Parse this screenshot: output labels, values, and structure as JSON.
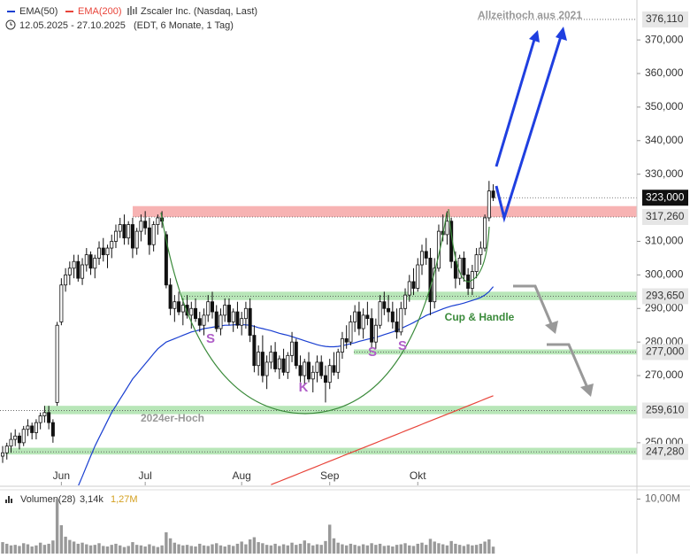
{
  "chart_data": {
    "type": "candlestick",
    "title": "Zscaler Inc. (Nasdaq, Last)",
    "date_range": "12.05.2025 - 27.10.2025",
    "period_note": "(EDT, 6 Monate, 1 Tag)",
    "x_labels": [
      {
        "index": 14,
        "label": "Jun"
      },
      {
        "index": 34,
        "label": "Jul"
      },
      {
        "index": 57,
        "label": "Aug"
      },
      {
        "index": 78,
        "label": "Sep"
      },
      {
        "index": 99,
        "label": "Okt"
      }
    ],
    "candles": [
      [
        246,
        249,
        244,
        247
      ],
      [
        247,
        250,
        245,
        249
      ],
      [
        249,
        253,
        247,
        251
      ],
      [
        251,
        254,
        249,
        252
      ],
      [
        252,
        253,
        248,
        250
      ],
      [
        250,
        255,
        249,
        254
      ],
      [
        254,
        257,
        252,
        255
      ],
      [
        255,
        256,
        251,
        253
      ],
      [
        253,
        257,
        251,
        256
      ],
      [
        256,
        259,
        254,
        258
      ],
      [
        258,
        261,
        256,
        259
      ],
      [
        259,
        261,
        254,
        256
      ],
      [
        256,
        257,
        250,
        252
      ],
      [
        262,
        286,
        261,
        285
      ],
      [
        286,
        299,
        285,
        297
      ],
      [
        297,
        302,
        295,
        300
      ],
      [
        300,
        304,
        297,
        302
      ],
      [
        302,
        306,
        299,
        304
      ],
      [
        304,
        306,
        298,
        299
      ],
      [
        299,
        305,
        297,
        303
      ],
      [
        303,
        308,
        301,
        306
      ],
      [
        306,
        307,
        300,
        302
      ],
      [
        302,
        306,
        299,
        305
      ],
      [
        305,
        310,
        303,
        308
      ],
      [
        308,
        311,
        304,
        306
      ],
      [
        306,
        309,
        302,
        308
      ],
      [
        308,
        312,
        305,
        310
      ],
      [
        310,
        315,
        308,
        313
      ],
      [
        313,
        317,
        311,
        315
      ],
      [
        315,
        318,
        309,
        311
      ],
      [
        311,
        316,
        309,
        315
      ],
      [
        315,
        317,
        305,
        308
      ],
      [
        308,
        314,
        306,
        313
      ],
      [
        313,
        318,
        310,
        316
      ],
      [
        316,
        319,
        312,
        314
      ],
      [
        314,
        317,
        306,
        309
      ],
      [
        309,
        316,
        307,
        315
      ],
      [
        315,
        318,
        312,
        317
      ],
      [
        317,
        319,
        314,
        316
      ],
      [
        312,
        313,
        296,
        297
      ],
      [
        297,
        299,
        288,
        290
      ],
      [
        290,
        294,
        286,
        292
      ],
      [
        292,
        295,
        288,
        289
      ],
      [
        289,
        293,
        285,
        291
      ],
      [
        291,
        294,
        287,
        288
      ],
      [
        288,
        292,
        284,
        290
      ],
      [
        290,
        293,
        286,
        287
      ],
      [
        287,
        289,
        283,
        285
      ],
      [
        285,
        290,
        282,
        288
      ],
      [
        288,
        294,
        286,
        292
      ],
      [
        292,
        295,
        287,
        289
      ],
      [
        289,
        291,
        283,
        284
      ],
      [
        284,
        290,
        282,
        288
      ],
      [
        288,
        293,
        286,
        291
      ],
      [
        291,
        293,
        285,
        286
      ],
      [
        286,
        290,
        283,
        289
      ],
      [
        289,
        292,
        284,
        285
      ],
      [
        285,
        289,
        282,
        287
      ],
      [
        287,
        292,
        284,
        290
      ],
      [
        290,
        293,
        280,
        282
      ],
      [
        282,
        285,
        271,
        273
      ],
      [
        273,
        279,
        270,
        277
      ],
      [
        277,
        282,
        268,
        270
      ],
      [
        270,
        276,
        266,
        274
      ],
      [
        274,
        279,
        272,
        277
      ],
      [
        277,
        280,
        271,
        272
      ],
      [
        272,
        276,
        269,
        275
      ],
      [
        275,
        278,
        270,
        271
      ],
      [
        271,
        277,
        269,
        276
      ],
      [
        276,
        283,
        274,
        280
      ],
      [
        280,
        281,
        272,
        273
      ],
      [
        273,
        276,
        268,
        270
      ],
      [
        270,
        275,
        267,
        274
      ],
      [
        274,
        277,
        268,
        269
      ],
      [
        269,
        273,
        265,
        271
      ],
      [
        271,
        276,
        268,
        274
      ],
      [
        274,
        276,
        269,
        270
      ],
      [
        270,
        273,
        262,
        268
      ],
      [
        268,
        275,
        266,
        273
      ],
      [
        273,
        277,
        270,
        271
      ],
      [
        271,
        278,
        269,
        277
      ],
      [
        277,
        283,
        275,
        281
      ],
      [
        281,
        285,
        278,
        280
      ],
      [
        280,
        288,
        279,
        286
      ],
      [
        286,
        291,
        283,
        289
      ],
      [
        289,
        292,
        282,
        284
      ],
      [
        284,
        290,
        281,
        288
      ],
      [
        288,
        292,
        285,
        287
      ],
      [
        287,
        290,
        278,
        280
      ],
      [
        280,
        287,
        278,
        285
      ],
      [
        285,
        294,
        284,
        292
      ],
      [
        292,
        295,
        288,
        290
      ],
      [
        290,
        294,
        286,
        289
      ],
      [
        289,
        292,
        284,
        286
      ],
      [
        286,
        290,
        281,
        283
      ],
      [
        283,
        292,
        282,
        290
      ],
      [
        290,
        296,
        288,
        294
      ],
      [
        294,
        300,
        292,
        298
      ],
      [
        298,
        302,
        294,
        296
      ],
      [
        296,
        305,
        295,
        303
      ],
      [
        303,
        309,
        300,
        307
      ],
      [
        307,
        311,
        303,
        305
      ],
      [
        305,
        308,
        288,
        292
      ],
      [
        292,
        305,
        290,
        302
      ],
      [
        302,
        315,
        301,
        313
      ],
      [
        313,
        318,
        310,
        312
      ],
      [
        312,
        319,
        309,
        316
      ],
      [
        316,
        317,
        302,
        304
      ],
      [
        304,
        307,
        296,
        299
      ],
      [
        299,
        306,
        297,
        305
      ],
      [
        305,
        307,
        298,
        300
      ],
      [
        300,
        302,
        294,
        296
      ],
      [
        296,
        303,
        294,
        301
      ],
      [
        301,
        308,
        299,
        306
      ],
      [
        306,
        310,
        303,
        308
      ],
      [
        308,
        318,
        307,
        317
      ],
      [
        317,
        328,
        316,
        325
      ],
      [
        325,
        327,
        322,
        323
      ]
    ],
    "series": [
      {
        "name": "EMA(50)",
        "color": "#1a3fd1",
        "values": [
          null,
          null,
          null,
          null,
          null,
          null,
          null,
          null,
          null,
          null,
          null,
          null,
          null,
          null,
          null,
          null,
          null,
          null,
          237,
          240,
          243,
          246,
          249,
          251.5,
          254,
          256.5,
          259,
          261,
          263,
          265,
          267,
          269,
          270.5,
          272,
          273.5,
          275,
          276.5,
          278,
          279,
          280,
          280.5,
          281,
          281.5,
          282,
          282.5,
          283,
          283.3,
          283.6,
          284,
          284.2,
          284.4,
          284.6,
          284.8,
          285,
          285,
          285.1,
          285.2,
          285.2,
          285.1,
          285,
          284.7,
          284.3,
          284,
          283.7,
          283.4,
          283,
          282.6,
          282.3,
          282,
          281.6,
          281.2,
          280.8,
          280.4,
          280,
          279.6,
          279.2,
          278.9,
          278.7,
          278.6,
          278.6,
          278.7,
          278.9,
          279.2,
          279.5,
          279.8,
          280.2,
          280.5,
          280.8,
          281.1,
          281.4,
          281.8,
          282.2,
          282.6,
          283,
          283.5,
          284,
          284.6,
          285.2,
          285.8,
          286.5,
          287.2,
          287.9,
          288.4,
          288.9,
          289.4,
          289.9,
          290.3,
          290.7,
          291,
          291.3,
          291.6,
          292,
          292.4,
          292.8,
          293.3,
          294,
          295,
          296.5
        ]
      },
      {
        "name": "EMA(200)",
        "color": "#e8443a",
        "values": [
          null,
          null,
          null,
          null,
          null,
          null,
          null,
          null,
          null,
          null,
          null,
          null,
          null,
          null,
          null,
          null,
          null,
          null,
          null,
          null,
          null,
          null,
          null,
          null,
          null,
          null,
          null,
          null,
          null,
          null,
          null,
          null,
          null,
          null,
          null,
          null,
          null,
          null,
          null,
          null,
          null,
          null,
          null,
          null,
          null,
          null,
          null,
          null,
          null,
          null,
          null,
          null,
          null,
          null,
          null,
          null,
          null,
          null,
          null,
          null,
          null,
          null,
          null,
          null,
          237.5,
          238,
          238.5,
          239,
          239.5,
          240,
          240.5,
          241,
          241.5,
          242,
          242.5,
          243,
          243.5,
          244,
          244.5,
          245,
          245.5,
          246,
          246.5,
          247,
          247.5,
          248,
          248.5,
          249,
          249.5,
          250,
          250.5,
          251,
          251.5,
          252,
          252.5,
          253,
          253.5,
          254,
          254.5,
          255,
          255.5,
          256,
          256.5,
          257,
          257.5,
          258,
          258.5,
          259,
          259.5,
          260,
          260.5,
          261,
          261.5,
          262,
          262.5,
          263,
          263.5,
          264
        ]
      }
    ],
    "ylim": [
      237.3,
      381.9
    ],
    "yticks": [
      {
        "value": 250,
        "label": "250,000"
      },
      {
        "value": 270,
        "label": "270,000"
      },
      {
        "value": 280,
        "label": "280,000"
      },
      {
        "value": 290,
        "label": "290,000"
      },
      {
        "value": 300,
        "label": "300,000"
      },
      {
        "value": 310,
        "label": "310,000"
      },
      {
        "value": 330,
        "label": "330,000"
      },
      {
        "value": 340,
        "label": "340,000"
      },
      {
        "value": 350,
        "label": "350,000"
      },
      {
        "value": 360,
        "label": "360,000"
      },
      {
        "value": 370,
        "label": "370,000"
      }
    ],
    "price_labels": [
      {
        "value": 376.11,
        "label": "376,110"
      },
      {
        "value": 323,
        "label": "323,000",
        "highlight": true
      },
      {
        "value": 317.26,
        "label": "317,260"
      },
      {
        "value": 293.65,
        "label": "293,650"
      },
      {
        "value": 277,
        "label": "277,000"
      },
      {
        "value": 259.61,
        "label": "259,610"
      },
      {
        "value": 247.28,
        "label": "247,280"
      }
    ],
    "zones": [
      {
        "from": 317.26,
        "to": 320.5,
        "color": "#f7b3b3"
      },
      {
        "from": 292.5,
        "to": 295,
        "color": "#b8e6b8"
      },
      {
        "from": 276.3,
        "to": 277.8,
        "color": "#b8e6b8"
      },
      {
        "from": 258.5,
        "to": 261,
        "color": "#b8e6b8"
      },
      {
        "from": 246.5,
        "to": 248.5,
        "color": "#b8e6b8"
      }
    ],
    "annotations": [
      "Allzeithoch aus 2021",
      "Cup & Handle",
      "2024er-Hoch",
      "S",
      "S",
      "S",
      "K"
    ],
    "volume": {
      "label": "Volumen(28)",
      "avg_label": "3,14k",
      "last_label": "1,27M",
      "color": "#999999",
      "values": [
        2.1,
        1.8,
        1.5,
        1.6,
        1.4,
        1.9,
        1.7,
        1.3,
        1.5,
        2.0,
        1.6,
        1.8,
        2.4,
        10.0,
        5.2,
        3.1,
        2.5,
        2.2,
        1.8,
        2.0,
        1.7,
        1.5,
        1.6,
        1.9,
        1.4,
        1.3,
        1.6,
        1.8,
        1.5,
        1.2,
        1.4,
        2.1,
        1.6,
        1.5,
        1.3,
        1.7,
        1.4,
        1.2,
        1.5,
        3.9,
        2.8,
        2.0,
        1.7,
        1.5,
        1.6,
        1.4,
        1.3,
        1.8,
        1.5,
        1.4,
        1.7,
        1.9,
        1.5,
        1.3,
        1.6,
        1.4,
        1.8,
        2.2,
        1.7,
        2.6,
        3.0,
        2.1,
        1.9,
        1.6,
        1.5,
        1.8,
        1.4,
        1.7,
        1.5,
        2.0,
        1.6,
        1.8,
        2.4,
        1.9,
        1.5,
        1.7,
        1.6,
        2.3,
        5.3,
        2.8,
        2.0,
        1.7,
        1.5,
        1.8,
        1.6,
        1.4,
        1.7,
        1.5,
        1.9,
        1.6,
        1.8,
        1.4,
        1.5,
        1.3,
        1.6,
        1.7,
        1.9,
        1.5,
        1.4,
        1.8,
        2.0,
        1.6,
        2.7,
        2.2,
        1.9,
        1.7,
        1.5,
        2.3,
        1.8,
        1.6,
        1.4,
        1.7,
        1.5,
        1.6,
        1.8,
        2.2,
        2.6,
        1.27
      ],
      "ylim": [
        0,
        11.7
      ],
      "yticks": [
        {
          "value": 10,
          "label": "10,00M"
        }
      ]
    }
  }
}
